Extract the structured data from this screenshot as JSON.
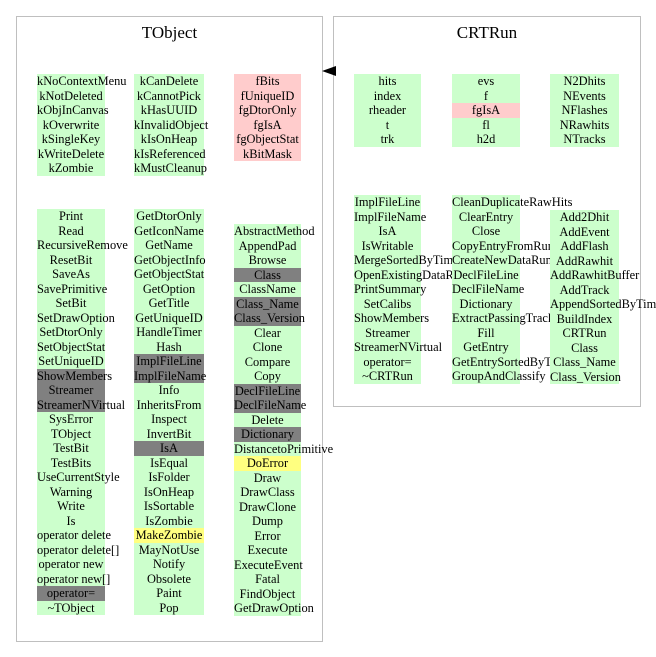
{
  "tobject": {
    "title": "TObject",
    "col1": [
      "kNoContextMenu",
      "kNotDeleted",
      "kObjInCanvas",
      "kOverwrite",
      "kSingleKey",
      "kWriteDelete",
      "kZombie"
    ],
    "col2": [
      "kCanDelete",
      "kCannotPick",
      "kHasUUID",
      "kInvalidObject",
      "kIsOnHeap",
      "kIsReferenced",
      "kMustCleanup"
    ],
    "col3": [
      {
        "t": "fBits",
        "c": "pink"
      },
      {
        "t": "fUniqueID",
        "c": "pink"
      },
      {
        "t": "fgDtorOnly",
        "c": "pink"
      },
      {
        "t": "fgIsA",
        "c": "pink"
      },
      {
        "t": "fgObjectStat",
        "c": "pink"
      },
      {
        "t": "kBitMask",
        "c": "pink"
      }
    ],
    "col4": [
      {
        "t": "Print"
      },
      {
        "t": "Read"
      },
      {
        "t": "RecursiveRemove"
      },
      {
        "t": "ResetBit"
      },
      {
        "t": "SaveAs"
      },
      {
        "t": "SavePrimitive"
      },
      {
        "t": "SetBit"
      },
      {
        "t": "SetDrawOption"
      },
      {
        "t": "SetDtorOnly"
      },
      {
        "t": "SetObjectStat"
      },
      {
        "t": "SetUniqueID"
      },
      {
        "t": "ShowMembers",
        "c": "dark"
      },
      {
        "t": "Streamer",
        "c": "dark"
      },
      {
        "t": "StreamerNVirtual",
        "c": "dark"
      },
      {
        "t": "SysError"
      },
      {
        "t": "TObject"
      },
      {
        "t": "TestBit"
      },
      {
        "t": "TestBits"
      },
      {
        "t": "UseCurrentStyle"
      },
      {
        "t": "Warning"
      },
      {
        "t": "Write"
      },
      {
        "t": "Is"
      },
      {
        "t": "operator delete"
      },
      {
        "t": "operator delete[]"
      },
      {
        "t": "operator new"
      },
      {
        "t": "operator new[]"
      },
      {
        "t": "operator=",
        "c": "dark"
      },
      {
        "t": "~TObject"
      }
    ],
    "col5": [
      {
        "t": "GetDtorOnly"
      },
      {
        "t": "GetIconName"
      },
      {
        "t": "GetName"
      },
      {
        "t": "GetObjectInfo"
      },
      {
        "t": "GetObjectStat"
      },
      {
        "t": "GetOption"
      },
      {
        "t": "GetTitle"
      },
      {
        "t": "GetUniqueID"
      },
      {
        "t": "HandleTimer"
      },
      {
        "t": "Hash"
      },
      {
        "t": "ImplFileLine",
        "c": "dark"
      },
      {
        "t": "ImplFileName",
        "c": "dark"
      },
      {
        "t": "Info"
      },
      {
        "t": "InheritsFrom"
      },
      {
        "t": "Inspect"
      },
      {
        "t": "InvertBit"
      },
      {
        "t": "IsA",
        "c": "dark"
      },
      {
        "t": "IsEqual"
      },
      {
        "t": "IsFolder"
      },
      {
        "t": "IsOnHeap"
      },
      {
        "t": "IsSortable"
      },
      {
        "t": "IsZombie"
      },
      {
        "t": "MakeZombie",
        "c": "yellow"
      },
      {
        "t": "MayNotUse"
      },
      {
        "t": "Notify"
      },
      {
        "t": "Obsolete"
      },
      {
        "t": "Paint"
      },
      {
        "t": "Pop"
      }
    ],
    "col6": [
      {
        "t": "AbstractMethod"
      },
      {
        "t": "AppendPad"
      },
      {
        "t": "Browse"
      },
      {
        "t": "Class",
        "c": "dark"
      },
      {
        "t": "ClassName"
      },
      {
        "t": "Class_Name",
        "c": "dark"
      },
      {
        "t": "Class_Version",
        "c": "dark"
      },
      {
        "t": "Clear"
      },
      {
        "t": "Clone"
      },
      {
        "t": "Compare"
      },
      {
        "t": "Copy"
      },
      {
        "t": "DeclFileLine",
        "c": "dark"
      },
      {
        "t": "DeclFileName",
        "c": "dark"
      },
      {
        "t": "Delete"
      },
      {
        "t": "Dictionary",
        "c": "dark"
      },
      {
        "t": "DistancetoPrimitive"
      },
      {
        "t": "DoError",
        "c": "yellow"
      },
      {
        "t": "Draw"
      },
      {
        "t": "DrawClass"
      },
      {
        "t": "DrawClone"
      },
      {
        "t": "Dump"
      },
      {
        "t": "Error"
      },
      {
        "t": "Execute"
      },
      {
        "t": "ExecuteEvent"
      },
      {
        "t": "Fatal"
      },
      {
        "t": "FindObject"
      },
      {
        "t": "GetDrawOption"
      }
    ]
  },
  "crtrun": {
    "title": "CRTRun",
    "col1": [
      {
        "t": "hits"
      },
      {
        "t": "index"
      },
      {
        "t": "rheader"
      },
      {
        "t": "t"
      },
      {
        "t": "trk"
      }
    ],
    "col2": [
      {
        "t": "evs"
      },
      {
        "t": "f"
      },
      {
        "t": "fgIsA",
        "c": "pink"
      },
      {
        "t": "fl"
      },
      {
        "t": "h2d"
      }
    ],
    "col3": [
      {
        "t": "N2Dhits"
      },
      {
        "t": "NEvents"
      },
      {
        "t": "NFlashes"
      },
      {
        "t": "NRawhits"
      },
      {
        "t": "NTracks"
      }
    ],
    "col4": [
      {
        "t": "ImplFileLine"
      },
      {
        "t": "ImplFileName"
      },
      {
        "t": "IsA"
      },
      {
        "t": "IsWritable"
      },
      {
        "t": "MergeSortedByTime"
      },
      {
        "t": "OpenExistingDataRun"
      },
      {
        "t": "PrintSummary"
      },
      {
        "t": "SetCalibs"
      },
      {
        "t": "ShowMembers"
      },
      {
        "t": "Streamer"
      },
      {
        "t": "StreamerNVirtual"
      },
      {
        "t": "operator="
      },
      {
        "t": "~CRTRun"
      }
    ],
    "col5": [
      {
        "t": "CleanDuplicateRawHits"
      },
      {
        "t": "ClearEntry"
      },
      {
        "t": "Close"
      },
      {
        "t": "CopyEntryFromRun"
      },
      {
        "t": "CreateNewDataRun"
      },
      {
        "t": "DeclFileLine"
      },
      {
        "t": "DeclFileName"
      },
      {
        "t": "Dictionary"
      },
      {
        "t": "ExtractPassingTracks"
      },
      {
        "t": "Fill"
      },
      {
        "t": "GetEntry"
      },
      {
        "t": "GetEntrySortedByTime"
      },
      {
        "t": "GroupAndClassify"
      }
    ],
    "col6": [
      {
        "t": "Add2Dhit"
      },
      {
        "t": "AddEvent"
      },
      {
        "t": "AddFlash"
      },
      {
        "t": "AddRawhit"
      },
      {
        "t": "AddRawhitBuffer"
      },
      {
        "t": "AddTrack"
      },
      {
        "t": "AppendSortedByTime"
      },
      {
        "t": "BuildIndex"
      },
      {
        "t": "CRTRun"
      },
      {
        "t": "Class"
      },
      {
        "t": "Class_Name"
      },
      {
        "t": "Class_Version"
      }
    ]
  },
  "colors": {
    "method": "#ccffcc",
    "data_member": "#ffcccc",
    "overridden": "#808080",
    "protected": "#ffff80"
  }
}
